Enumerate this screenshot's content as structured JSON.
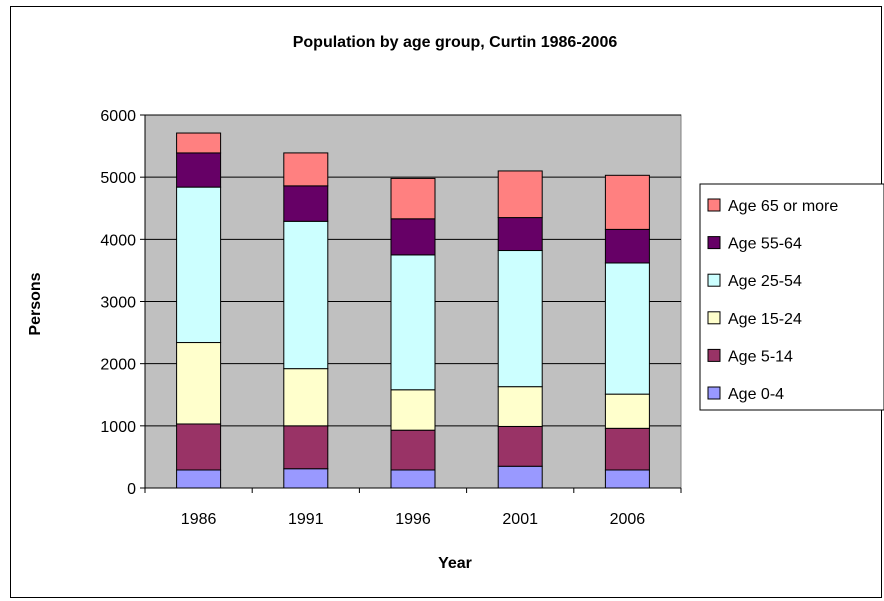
{
  "chart_data": {
    "type": "bar",
    "stacked": true,
    "title": "Population by age group, Curtin 1986-2006",
    "xlabel": "Year",
    "ylabel": "Persons",
    "categories": [
      "1986",
      "1991",
      "1996",
      "2001",
      "2006"
    ],
    "ylim": [
      0,
      6000
    ],
    "yticks": [
      0,
      1000,
      2000,
      3000,
      4000,
      5000,
      6000
    ],
    "grid": true,
    "legend_position": "right",
    "plot_background": "#c0c0c0",
    "series": [
      {
        "name": "Age 0-4",
        "color": "#9999ff",
        "values": [
          290,
          310,
          290,
          350,
          290
        ]
      },
      {
        "name": "Age 5-14",
        "color": "#993366",
        "values": [
          740,
          690,
          640,
          640,
          670
        ]
      },
      {
        "name": "Age 15-24",
        "color": "#ffffcc",
        "values": [
          1310,
          920,
          650,
          640,
          550
        ]
      },
      {
        "name": "Age 25-54",
        "color": "#ccffff",
        "values": [
          2500,
          2370,
          2170,
          2190,
          2110
        ]
      },
      {
        "name": "Age 55-64",
        "color": "#660066",
        "values": [
          550,
          570,
          580,
          530,
          540
        ]
      },
      {
        "name": "Age 65 or more",
        "color": "#ff8080",
        "values": [
          320,
          530,
          650,
          750,
          870
        ]
      }
    ]
  }
}
